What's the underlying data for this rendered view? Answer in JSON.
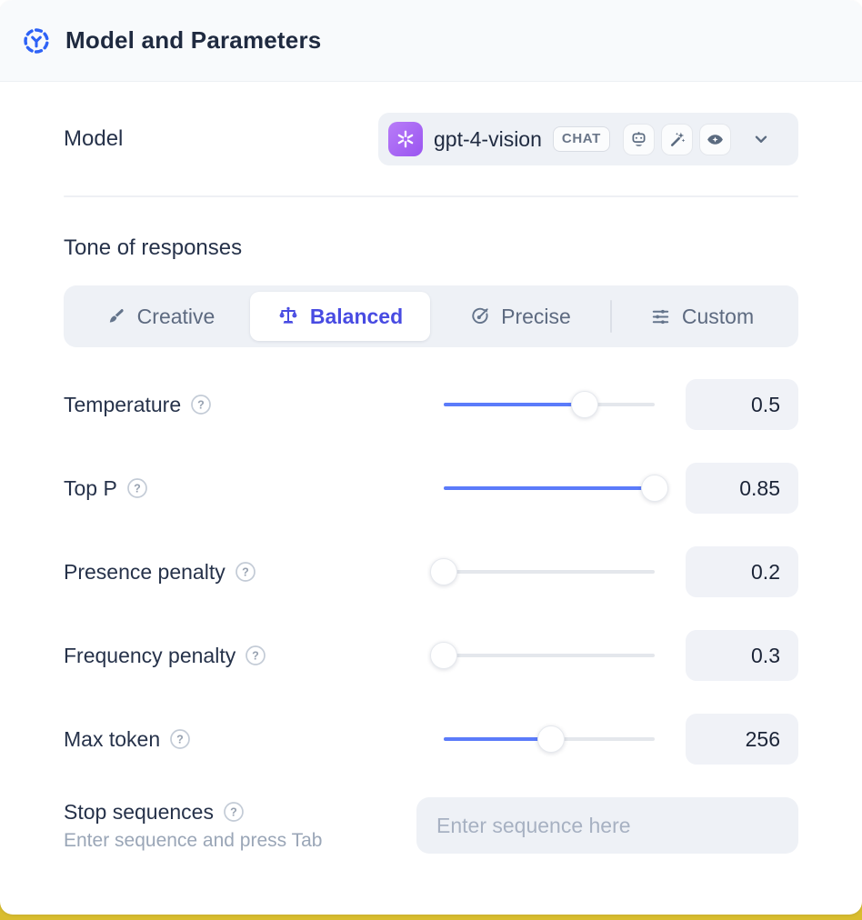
{
  "header": {
    "title": "Model and Parameters",
    "icon": "model-hub-icon"
  },
  "model": {
    "label": "Model",
    "selected": {
      "name": "gpt-4-vision",
      "provider_icon": "openai-logo",
      "type_badge": "CHAT",
      "capability_icons": [
        "robot-icon",
        "magic-wand-icon",
        "vision-eye-icon"
      ]
    }
  },
  "tone": {
    "heading": "Tone of responses",
    "tabs": [
      {
        "label": "Creative",
        "icon": "paintbrush-icon",
        "selected": false
      },
      {
        "label": "Balanced",
        "icon": "balance-scale-icon",
        "selected": true
      },
      {
        "label": "Precise",
        "icon": "target-icon",
        "selected": false
      },
      {
        "label": "Custom",
        "icon": "sliders-icon",
        "selected": false
      }
    ]
  },
  "parameters": {
    "rows": [
      {
        "label": "Temperature",
        "value": "0.5",
        "percent": 67
      },
      {
        "label": "Top P",
        "value": "0.85",
        "percent": 100
      },
      {
        "label": "Presence penalty",
        "value": "0.2",
        "percent": 0
      },
      {
        "label": "Frequency penalty",
        "value": "0.3",
        "percent": 0
      },
      {
        "label": "Max token",
        "value": "256",
        "percent": 51
      }
    ]
  },
  "stop_sequences": {
    "label": "Stop sequences",
    "hint": "Enter sequence and press Tab",
    "placeholder": "Enter sequence here"
  },
  "colors": {
    "accent_blue": "#5b7bfa",
    "selected_indigo": "#484be2",
    "header_icon_blue": "#2e62f6",
    "openai_purple": "#a864f6",
    "backdrop_yellow": "#d9bd2e",
    "panel_gray": "#eef1f6",
    "text_dark": "#26324a",
    "text_slate": "#5d6a80"
  }
}
